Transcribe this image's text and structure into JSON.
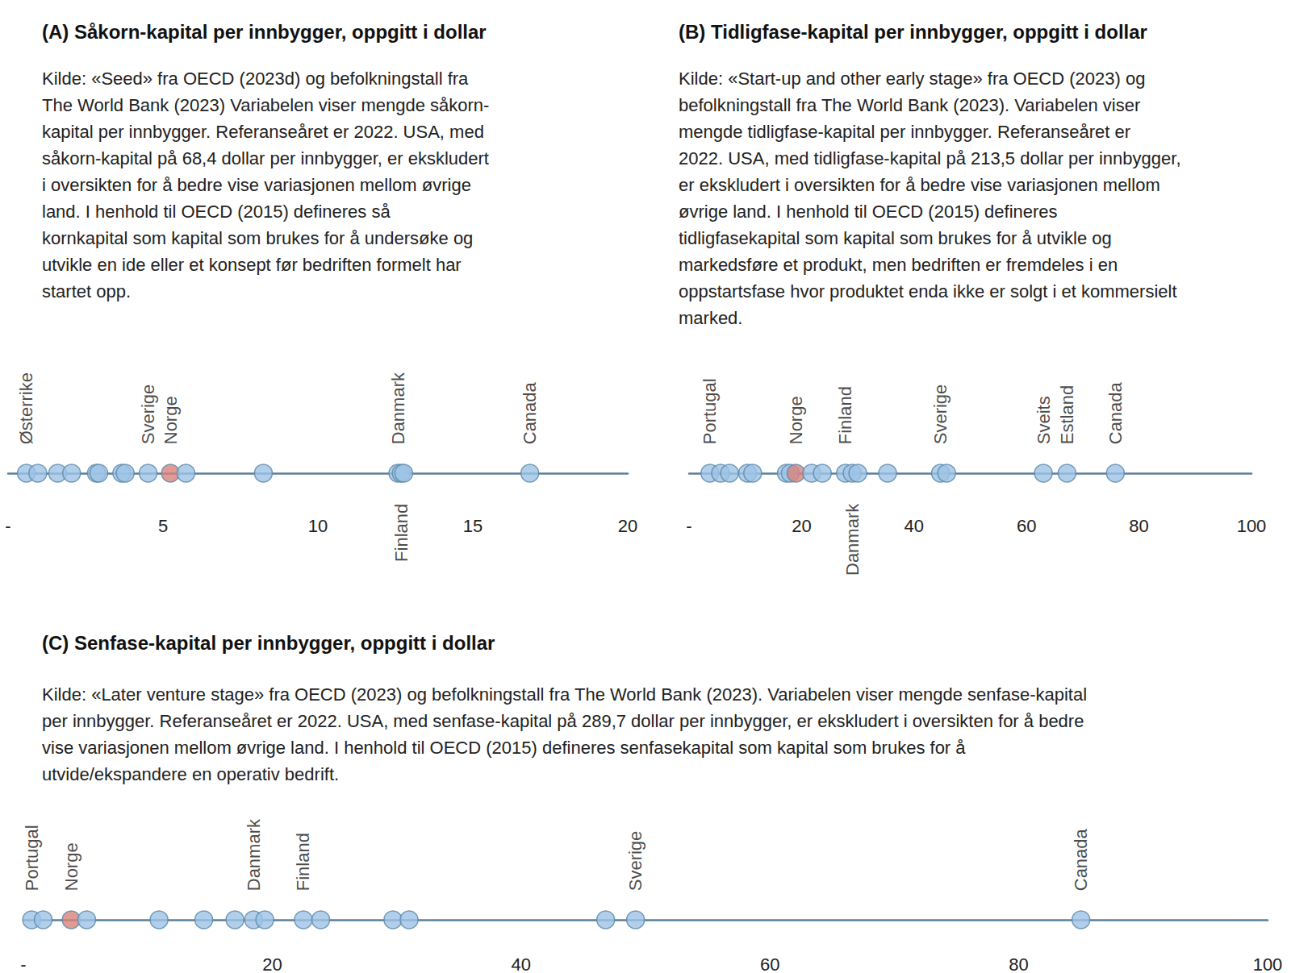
{
  "chart_data": [
    {
      "type": "scatter",
      "title": "(A) Såkorn-kapital per innbygger, oppgitt i dollar",
      "subtitle": "Kilde: «Seed» fra OECD (2023d) og befolkningstall fra\nThe World Bank (2023) Variabelen viser mengde såkorn-\nkapital per innbygger. Referanseåret er 2022. USA, med\nsåkorn-kapital på 68,4 dollar per innbygger, er ekskludert\ni oversikten for å bedre vise variasjonen mellom øvrige\nland. I henhold til OECD (2015) defineres så\nkornkapital som kapital som brukes for å undersøke og\nutvikle en ide eller et konsept før bedriften formelt har\nstartet opp.",
      "x": [
        0.59,
        0.96,
        1.6,
        2.05,
        2.85,
        2.93,
        3.67,
        3.78,
        4.52,
        5.24,
        5.74,
        8.24,
        12.58,
        12.69,
        12.77,
        16.84
      ],
      "labels": [
        "Østerrike",
        null,
        null,
        null,
        null,
        null,
        null,
        null,
        "Sverige",
        "Norge",
        null,
        null,
        "Danmark",
        "Finland",
        null,
        "Canada"
      ],
      "colors": [
        "#9dc3e6",
        "#9dc3e6",
        "#9dc3e6",
        "#9dc3e6",
        "#9dc3e6",
        "#9dc3e6",
        "#9dc3e6",
        "#9dc3e6",
        "#9dc3e6",
        "#d9827a",
        "#9dc3e6",
        "#9dc3e6",
        "#9dc3e6",
        "#9dc3e6",
        "#9dc3e6",
        "#9dc3e6"
      ],
      "xlim": [
        0,
        20
      ],
      "xticks": [
        {
          "value": 0,
          "label": "-"
        },
        5,
        10,
        15,
        20
      ],
      "tick_labels": "x",
      "marker": "circle"
    },
    {
      "type": "scatter",
      "title": "(B) Tidligfase-kapital per innbygger, oppgitt i dollar",
      "subtitle": "Kilde: «Start-up and other early stage» fra OECD (2023) og\nbefolkningstall fra The World Bank (2023). Variabelen viser\nmengde tidligfase-kapital per innbygger. Referanseåret er\n2022. USA, med tidligfase-kapital på 213,5 dollar per innbygger,\ner ekskludert i oversikten for å bedre vise variasjonen mellom\nøvrige land. I henhold til OECD (2015) defineres\ntidligfasekapital som kapital som brukes for å utvikle og\nmarkedsføre et produkt, men bedriften er fremdeles i en\noppstartsfase hvor produktet enda ikke er solgt i et kommersielt\nmarked.",
      "x": [
        3.7,
        5.6,
        7.2,
        10.4,
        11.3,
        17.3,
        18.0,
        19.0,
        21.8,
        23.7,
        27.8,
        29.0,
        30.0,
        35.3,
        44.7,
        45.8,
        63.0,
        67.2,
        75.8
      ],
      "labels": [
        "Portugal",
        null,
        null,
        null,
        null,
        null,
        null,
        "Norge",
        null,
        null,
        "Finland",
        "Danmark",
        null,
        null,
        "Sverige",
        null,
        "Sveits",
        "Estland",
        "Canada"
      ],
      "colors": [
        "#9dc3e6",
        "#9dc3e6",
        "#9dc3e6",
        "#9dc3e6",
        "#9dc3e6",
        "#9dc3e6",
        "#9dc3e6",
        "#d9827a",
        "#9dc3e6",
        "#9dc3e6",
        "#9dc3e6",
        "#9dc3e6",
        "#9dc3e6",
        "#9dc3e6",
        "#9dc3e6",
        "#9dc3e6",
        "#9dc3e6",
        "#9dc3e6",
        "#9dc3e6"
      ],
      "xlim": [
        0,
        100
      ],
      "xticks": [
        {
          "value": 0,
          "label": "-"
        },
        20,
        40,
        60,
        80,
        100
      ],
      "tick_labels": "x",
      "marker": "circle"
    },
    {
      "type": "scatter",
      "title": "(C) Senfase-kapital per innbygger, oppgitt i dollar",
      "subtitle": "Kilde: «Later venture stage» fra OECD (2023) og befolkningstall fra The World Bank (2023). Variabelen viser mengde senfase-kapital\nper innbygger. Referanseåret er 2022. USA, med senfase-kapital på 289,7 dollar per innbygger, er ekskludert i oversikten for å bedre\nvise variasjonen mellom øvrige land. I henhold til OECD (2015) defineres senfasekapital som kapital som brukes for å\nutvide/ekspandere en operativ bedrift.",
      "x": [
        0.66,
        1.59,
        3.84,
        5.09,
        10.9,
        14.5,
        17.0,
        18.5,
        19.4,
        22.5,
        23.9,
        29.7,
        31.0,
        46.8,
        49.2,
        85.0
      ],
      "labels": [
        "Portugal",
        null,
        "Norge",
        null,
        null,
        null,
        null,
        "Danmark",
        null,
        "Finland",
        null,
        null,
        null,
        null,
        "Sverige",
        "Canada"
      ],
      "colors": [
        "#9dc3e6",
        "#9dc3e6",
        "#d9827a",
        "#9dc3e6",
        "#9dc3e6",
        "#9dc3e6",
        "#9dc3e6",
        "#9dc3e6",
        "#9dc3e6",
        "#9dc3e6",
        "#9dc3e6",
        "#9dc3e6",
        "#9dc3e6",
        "#9dc3e6",
        "#9dc3e6",
        "#9dc3e6"
      ],
      "xlim": [
        0,
        100
      ],
      "xticks": [
        {
          "value": 0,
          "label": "-"
        },
        20,
        40,
        60,
        80,
        100
      ],
      "tick_labels": "x",
      "marker": "circle"
    }
  ]
}
